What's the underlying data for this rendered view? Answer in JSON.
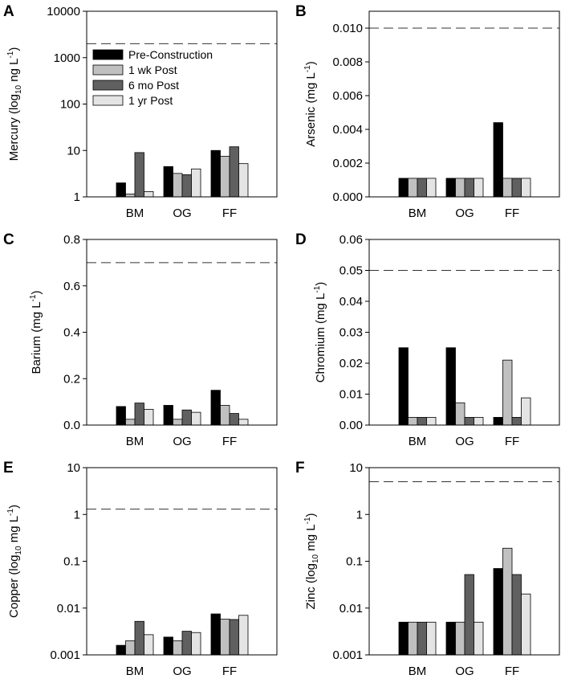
{
  "colors": {
    "pre": "#000000",
    "wk1": "#c0c0c0",
    "mo6": "#606060",
    "yr1": "#e4e4e4"
  },
  "legend": [
    {
      "key": "pre",
      "label": "Pre-Construction"
    },
    {
      "key": "wk1",
      "label": "1 wk Post"
    },
    {
      "key": "mo6",
      "label": "6 mo Post"
    },
    {
      "key": "yr1",
      "label": "1 yr Post"
    }
  ],
  "chart_data": [
    {
      "panel": "A",
      "type": "bar",
      "scale": "log",
      "ylabel_pre": "Mercury (log",
      "ylabel_sub": "10",
      "ylabel_mid": " ng L",
      "ylabel_sup": "-1",
      "ylabel_post": ")",
      "ylim": [
        1,
        10000
      ],
      "ticks": [
        1,
        10,
        100,
        1000,
        10000
      ],
      "tick_labels": [
        "1",
        "10",
        "100",
        "1000",
        "10000"
      ],
      "reference_line": 2000,
      "categories": [
        "BM",
        "OG",
        "FF"
      ],
      "series": [
        {
          "key": "pre",
          "name": "Pre-Construction",
          "values": [
            2.0,
            4.5,
            10.0
          ]
        },
        {
          "key": "wk1",
          "name": "1 wk Post",
          "values": [
            1.15,
            3.2,
            7.5
          ]
        },
        {
          "key": "mo6",
          "name": "6 mo Post",
          "values": [
            9.0,
            3.0,
            12.0
          ]
        },
        {
          "key": "yr1",
          "name": "1 yr Post",
          "values": [
            1.3,
            4.0,
            5.2
          ]
        }
      ],
      "legend": true
    },
    {
      "panel": "B",
      "type": "bar",
      "scale": "linear",
      "ylabel_pre": "Arsenic (mg L",
      "ylabel_sub": "",
      "ylabel_mid": "",
      "ylabel_sup": "-1",
      "ylabel_post": ")",
      "ylim": [
        0,
        0.011
      ],
      "ticks": [
        0,
        0.002,
        0.004,
        0.006,
        0.008,
        0.01
      ],
      "tick_labels": [
        "0.000",
        "0.002",
        "0.004",
        "0.006",
        "0.008",
        "0.010"
      ],
      "reference_line": 0.01,
      "categories": [
        "BM",
        "OG",
        "FF"
      ],
      "series": [
        {
          "key": "pre",
          "name": "Pre-Construction",
          "values": [
            0.0011,
            0.0011,
            0.0044
          ]
        },
        {
          "key": "wk1",
          "name": "1 wk Post",
          "values": [
            0.0011,
            0.0011,
            0.0011
          ]
        },
        {
          "key": "mo6",
          "name": "6 mo Post",
          "values": [
            0.0011,
            0.0011,
            0.0011
          ]
        },
        {
          "key": "yr1",
          "name": "1 yr Post",
          "values": [
            0.0011,
            0.0011,
            0.0011
          ]
        }
      ],
      "legend": false
    },
    {
      "panel": "C",
      "type": "bar",
      "scale": "linear",
      "ylabel_pre": "Barium (mg L",
      "ylabel_sub": "",
      "ylabel_mid": "",
      "ylabel_sup": "-1",
      "ylabel_post": ")",
      "ylim": [
        0,
        0.8
      ],
      "ticks": [
        0,
        0.2,
        0.4,
        0.6,
        0.8
      ],
      "tick_labels": [
        "0.0",
        "0.2",
        "0.4",
        "0.6",
        "0.8"
      ],
      "reference_line": 0.7,
      "categories": [
        "BM",
        "OG",
        "FF"
      ],
      "series": [
        {
          "key": "pre",
          "name": "Pre-Construction",
          "values": [
            0.08,
            0.085,
            0.15
          ]
        },
        {
          "key": "wk1",
          "name": "1 wk Post",
          "values": [
            0.025,
            0.025,
            0.085
          ]
        },
        {
          "key": "mo6",
          "name": "6 mo Post",
          "values": [
            0.095,
            0.065,
            0.05
          ]
        },
        {
          "key": "yr1",
          "name": "1 yr Post",
          "values": [
            0.068,
            0.055,
            0.025
          ]
        }
      ],
      "legend": false
    },
    {
      "panel": "D",
      "type": "bar",
      "scale": "linear",
      "ylabel_pre": "Chromium (mg L",
      "ylabel_sub": "",
      "ylabel_mid": "",
      "ylabel_sup": "-1",
      "ylabel_post": ")",
      "ylim": [
        0,
        0.06
      ],
      "ticks": [
        0,
        0.01,
        0.02,
        0.03,
        0.04,
        0.05,
        0.06
      ],
      "tick_labels": [
        "0.00",
        "0.01",
        "0.02",
        "0.03",
        "0.04",
        "0.05",
        "0.06"
      ],
      "reference_line": 0.05,
      "categories": [
        "BM",
        "OG",
        "FF"
      ],
      "series": [
        {
          "key": "pre",
          "name": "Pre-Construction",
          "values": [
            0.025,
            0.025,
            0.0025
          ]
        },
        {
          "key": "wk1",
          "name": "1 wk Post",
          "values": [
            0.0025,
            0.0072,
            0.021
          ]
        },
        {
          "key": "mo6",
          "name": "6 mo Post",
          "values": [
            0.0025,
            0.0025,
            0.0025
          ]
        },
        {
          "key": "yr1",
          "name": "1 yr Post",
          "values": [
            0.0025,
            0.0025,
            0.0088
          ]
        }
      ],
      "legend": false
    },
    {
      "panel": "E",
      "type": "bar",
      "scale": "log",
      "ylabel_pre": "Copper (log",
      "ylabel_sub": "10",
      "ylabel_mid": " mg L",
      "ylabel_sup": "-1",
      "ylabel_post": ")",
      "ylim": [
        0.001,
        10
      ],
      "ticks": [
        0.001,
        0.01,
        0.1,
        1,
        10
      ],
      "tick_labels": [
        "0.001",
        "0.01",
        "0.1",
        "1",
        "10"
      ],
      "reference_line": 1.3,
      "categories": [
        "BM",
        "OG",
        "FF"
      ],
      "series": [
        {
          "key": "pre",
          "name": "Pre-Construction",
          "values": [
            0.0016,
            0.0024,
            0.0075
          ]
        },
        {
          "key": "wk1",
          "name": "1 wk Post",
          "values": [
            0.002,
            0.002,
            0.0058
          ]
        },
        {
          "key": "mo6",
          "name": "6 mo Post",
          "values": [
            0.0052,
            0.0032,
            0.0057
          ]
        },
        {
          "key": "yr1",
          "name": "1 yr Post",
          "values": [
            0.0027,
            0.003,
            0.007
          ]
        }
      ],
      "legend": false
    },
    {
      "panel": "F",
      "type": "bar",
      "scale": "log",
      "ylabel_pre": "Zinc (log",
      "ylabel_sub": "10",
      "ylabel_mid": " mg L",
      "ylabel_sup": "-1",
      "ylabel_post": ")",
      "ylim": [
        0.001,
        10
      ],
      "ticks": [
        0.001,
        0.01,
        0.1,
        1,
        10
      ],
      "tick_labels": [
        "0.001",
        "0.01",
        "0.1",
        "1",
        "10"
      ],
      "reference_line": 5,
      "categories": [
        "BM",
        "OG",
        "FF"
      ],
      "series": [
        {
          "key": "pre",
          "name": "Pre-Construction",
          "values": [
            0.005,
            0.005,
            0.07
          ]
        },
        {
          "key": "wk1",
          "name": "1 wk Post",
          "values": [
            0.005,
            0.005,
            0.19
          ]
        },
        {
          "key": "mo6",
          "name": "6 mo Post",
          "values": [
            0.005,
            0.052,
            0.052
          ]
        },
        {
          "key": "yr1",
          "name": "1 yr Post",
          "values": [
            0.005,
            0.005,
            0.02
          ]
        }
      ],
      "legend": false
    }
  ]
}
